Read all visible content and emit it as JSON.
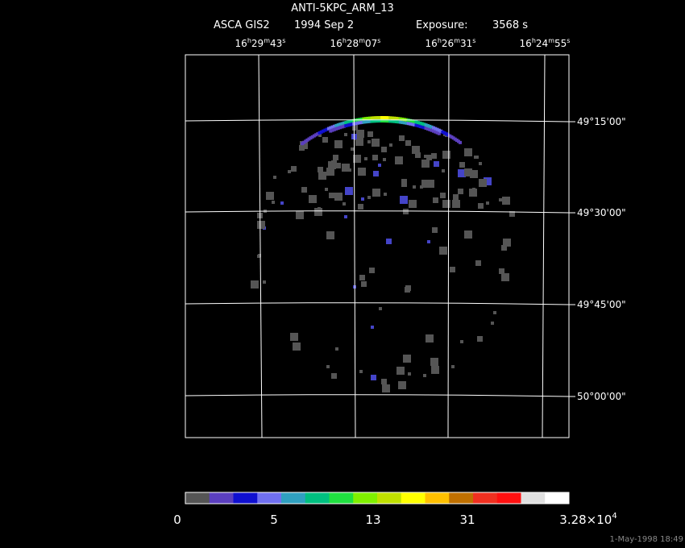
{
  "header": {
    "title": "ANTI-5KPC_ARM_13",
    "instrument": "ASCA GIS2",
    "date": "1994 Sep  2",
    "exposure_label": "Exposure:",
    "exposure": "3568 s"
  },
  "ra_labels": [
    [
      "16",
      "h",
      "29",
      "m",
      "43",
      "s"
    ],
    [
      "16",
      "h",
      "28",
      "m",
      "07",
      "s"
    ],
    [
      "16",
      "h",
      "26",
      "m",
      "31",
      "s"
    ],
    [
      "16",
      "h",
      "24",
      "m",
      "55",
      "s"
    ]
  ],
  "dec_labels": [
    "49°15'00\"",
    "49°30'00\"",
    "49°45'00\"",
    "50°00'00\""
  ],
  "colorbar_labels": [
    [
      "0"
    ],
    [
      "5"
    ],
    [
      "13"
    ],
    [
      "31"
    ],
    [
      "3.28×10",
      "4"
    ]
  ],
  "timestamp": "1-May-1998 18:49"
}
